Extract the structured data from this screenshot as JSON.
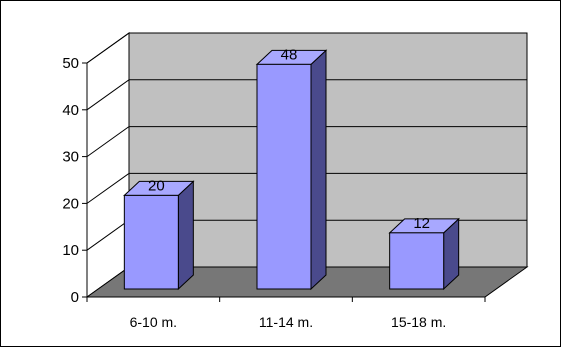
{
  "chart_data": {
    "type": "bar",
    "categories": [
      "6-10 m.",
      "11-14 m.",
      "15-18 m."
    ],
    "values": [
      20,
      48,
      12
    ],
    "data_labels": [
      "20",
      "48",
      "12"
    ],
    "title": "",
    "xlabel": "",
    "ylabel": "",
    "ylim": [
      0,
      50
    ],
    "yticks": [
      "0",
      "10",
      "20",
      "30",
      "40",
      "50"
    ],
    "grid": true,
    "three_d": true,
    "legend": "none",
    "colors": {
      "bar_front": "#9999ff",
      "bar_top": "#a8a8ff",
      "bar_side": "#4a4a8c",
      "back_wall": "#c0c0c0",
      "floor": "#777777",
      "side_wall": "#ffffff"
    }
  }
}
